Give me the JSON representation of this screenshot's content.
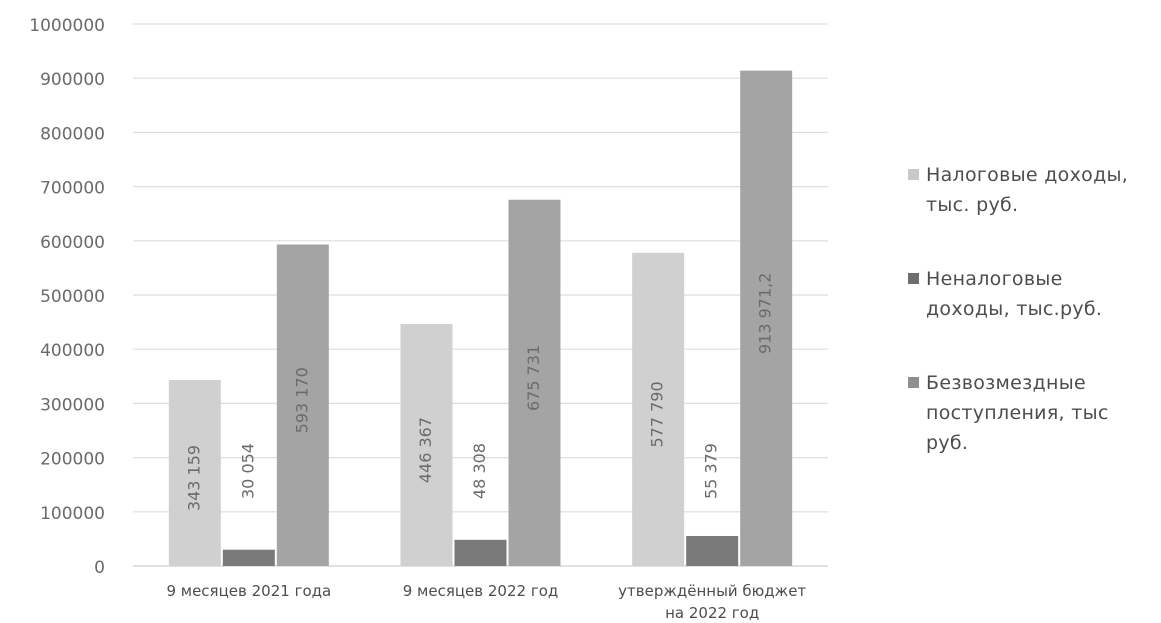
{
  "chart_data": {
    "type": "bar",
    "title": "",
    "categories": [
      "9 месяцев 2021 года",
      "9 месяцев 2022 год",
      "утверждённый бюджет на 2022 год"
    ],
    "category_lines": [
      [
        "9 месяцев 2021 года"
      ],
      [
        "9 месяцев 2022 год"
      ],
      [
        "утверждённый бюджет",
        "на 2022 год"
      ]
    ],
    "series": [
      {
        "name": "Налоговые доходы, тыс. руб.",
        "values": [
          343159,
          446367,
          577790
        ],
        "labels": [
          "343 159",
          "446 367",
          "577 790"
        ],
        "color": "#d0d0d0"
      },
      {
        "name": "Неналоговые доходы, тыс.руб.",
        "values": [
          30054,
          48308,
          55379
        ],
        "labels": [
          "30 054",
          "48 308",
          "55 379"
        ],
        "color": "#7a7a7a"
      },
      {
        "name": "Безвозмездные поступления, тыс руб.",
        "values": [
          593170,
          675731,
          913971.2
        ],
        "labels": [
          "593 170",
          "675 731",
          "913 971,2"
        ],
        "color": "#a4a4a4"
      }
    ],
    "ylim": [
      0,
      1000000
    ],
    "yticks": [
      0,
      100000,
      200000,
      300000,
      400000,
      500000,
      600000,
      700000,
      800000,
      900000,
      1000000
    ],
    "ytick_labels": [
      "0",
      "100000",
      "200000",
      "300000",
      "400000",
      "500000",
      "600000",
      "700000",
      "800000",
      "900000",
      "1000000"
    ],
    "xlabel": "",
    "ylabel": "",
    "grid": true,
    "legend_position": "right"
  },
  "legend": {
    "items": [
      {
        "label": "Налоговые доходы, тыс. руб.",
        "color": "#c8c8c8"
      },
      {
        "label": "Неналоговые доходы, тыс.руб.",
        "color": "#6e6e6e"
      },
      {
        "label": "Безвозмездные поступления, тыс руб.",
        "color": "#8f8f8f"
      }
    ]
  }
}
